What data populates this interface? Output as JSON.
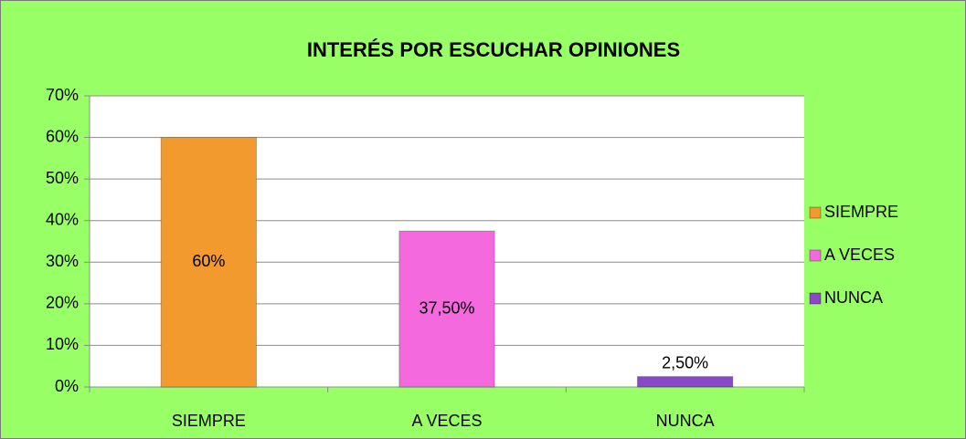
{
  "chart_data": {
    "type": "bar",
    "title": "INTERÉS POR ESCUCHAR OPINIONES",
    "categories": [
      "SIEMPRE",
      "A VECES",
      "NUNCA"
    ],
    "values": [
      60,
      37.5,
      2.5
    ],
    "value_labels": [
      "60%",
      "37,50%",
      "2,50%"
    ],
    "colors": [
      "#f39a2e",
      "#f469dd",
      "#8a48c9"
    ],
    "ylim": [
      0,
      70
    ],
    "yticks": [
      {
        "value": 0,
        "label": "0%"
      },
      {
        "value": 10,
        "label": "10%"
      },
      {
        "value": 20,
        "label": "20%"
      },
      {
        "value": 30,
        "label": "30%"
      },
      {
        "value": 40,
        "label": "40%"
      },
      {
        "value": 50,
        "label": "50%"
      },
      {
        "value": 60,
        "label": "60%"
      },
      {
        "value": 70,
        "label": "70%"
      }
    ],
    "grid": true,
    "legend": "right"
  }
}
